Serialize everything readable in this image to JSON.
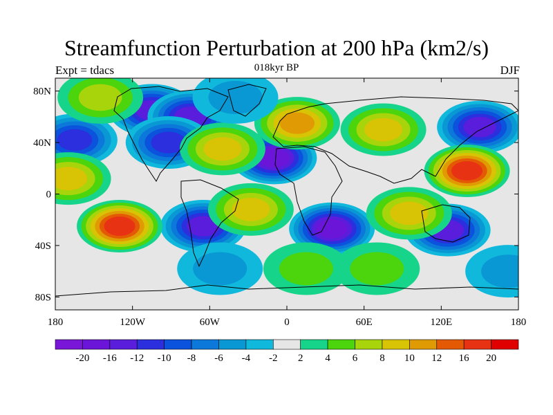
{
  "title": "Streamfunction Perturbation at 200 hPa (km2/s)",
  "subtitle": "018kyr BP",
  "left_label": "Expt = tdacs",
  "right_label": "DJF",
  "lat_ticks": [
    {
      "value": 80,
      "label": "80N"
    },
    {
      "value": 40,
      "label": "40N"
    },
    {
      "value": 0,
      "label": "0"
    },
    {
      "value": -40,
      "label": "40S"
    },
    {
      "value": -80,
      "label": "80S"
    }
  ],
  "lon_ticks": [
    {
      "value": -180,
      "label": "180"
    },
    {
      "value": -120,
      "label": "120W"
    },
    {
      "value": -60,
      "label": "60W"
    },
    {
      "value": 0,
      "label": "0"
    },
    {
      "value": 60,
      "label": "60E"
    },
    {
      "value": 120,
      "label": "120E"
    },
    {
      "value": 180,
      "label": "180"
    }
  ],
  "colorbar": {
    "colors": [
      "#7a16d8",
      "#6a15d8",
      "#5a1ddc",
      "#2b2fdd",
      "#0b52dc",
      "#0c78d9",
      "#0a98d4",
      "#10b8dc",
      "#e6e6e6",
      "#16d48a",
      "#4cd40c",
      "#a8d40c",
      "#d8c404",
      "#e09a04",
      "#e45a04",
      "#e83214",
      "#e00000"
    ],
    "labels": [
      "-20",
      "-16",
      "-12",
      "-10",
      "-8",
      "-6",
      "-4",
      "-2",
      "2",
      "4",
      "6",
      "8",
      "10",
      "12",
      "16",
      "20"
    ]
  },
  "chart_data": {
    "type": "heatmap",
    "title": "Streamfunction Perturbation at 200 hPa (km2/s)",
    "subtitle": "018kyr BP",
    "experiment": "Expt = tdacs",
    "season": "DJF",
    "lon_range": [
      -180,
      180
    ],
    "lat_range": [
      -90,
      90
    ],
    "contour_levels": [
      -20,
      -16,
      -12,
      -10,
      -8,
      -6,
      -4,
      -2,
      2,
      4,
      6,
      8,
      10,
      12,
      16,
      20
    ],
    "features": [
      {
        "lon": -105,
        "lat": 65,
        "value": -14
      },
      {
        "lon": -75,
        "lat": 60,
        "value": -12
      },
      {
        "lon": -92,
        "lat": 40,
        "value": -10
      },
      {
        "lon": -165,
        "lat": 42,
        "value": -10
      },
      {
        "lon": -10,
        "lat": 28,
        "value": -16
      },
      {
        "lon": 35,
        "lat": -27,
        "value": -16
      },
      {
        "lon": -65,
        "lat": -25,
        "value": -12
      },
      {
        "lon": 125,
        "lat": -28,
        "value": -12
      },
      {
        "lon": 150,
        "lat": 52,
        "value": -12
      },
      {
        "lon": 140,
        "lat": 18,
        "value": 18
      },
      {
        "lon": -130,
        "lat": -25,
        "value": 18
      },
      {
        "lon": 8,
        "lat": 55,
        "value": 10
      },
      {
        "lon": 75,
        "lat": 50,
        "value": 8
      },
      {
        "lon": -170,
        "lat": 12,
        "value": 8
      },
      {
        "lon": -50,
        "lat": 35,
        "value": 8
      },
      {
        "lon": -145,
        "lat": 75,
        "value": 6
      },
      {
        "lon": -28,
        "lat": -12,
        "value": 8
      },
      {
        "lon": 95,
        "lat": -15,
        "value": 8
      },
      {
        "lon": -40,
        "lat": 75,
        "value": -4
      },
      {
        "lon": -52,
        "lat": -58,
        "value": -4
      },
      {
        "lon": 172,
        "lat": -60,
        "value": -4
      },
      {
        "lon": 15,
        "lat": -58,
        "value": 4
      },
      {
        "lon": 70,
        "lat": -58,
        "value": 4
      }
    ]
  }
}
